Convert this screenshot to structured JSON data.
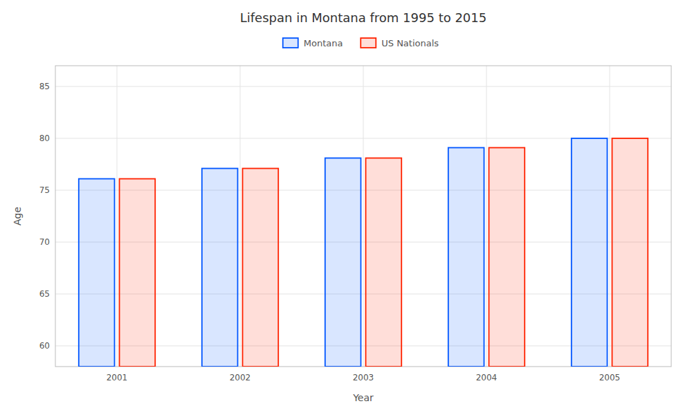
{
  "chart_data": {
    "type": "bar",
    "title": "Lifespan in Montana from 1995 to 2015",
    "x_label": "Year",
    "y_label": "Age",
    "categories": [
      "2001",
      "2002",
      "2003",
      "2004",
      "2005"
    ],
    "series": [
      {
        "name": "Montana",
        "color": "#0055ff",
        "values": [
          76.1,
          77.1,
          78.1,
          79.1,
          80.0
        ]
      },
      {
        "name": "US Nationals",
        "color": "#ff2200",
        "values": [
          76.1,
          77.1,
          78.1,
          79.1,
          80.0
        ]
      }
    ],
    "ylim": [
      58,
      87
    ],
    "yticks": [
      60,
      65,
      70,
      75,
      80,
      85
    ],
    "grid": true,
    "legend": "top"
  }
}
